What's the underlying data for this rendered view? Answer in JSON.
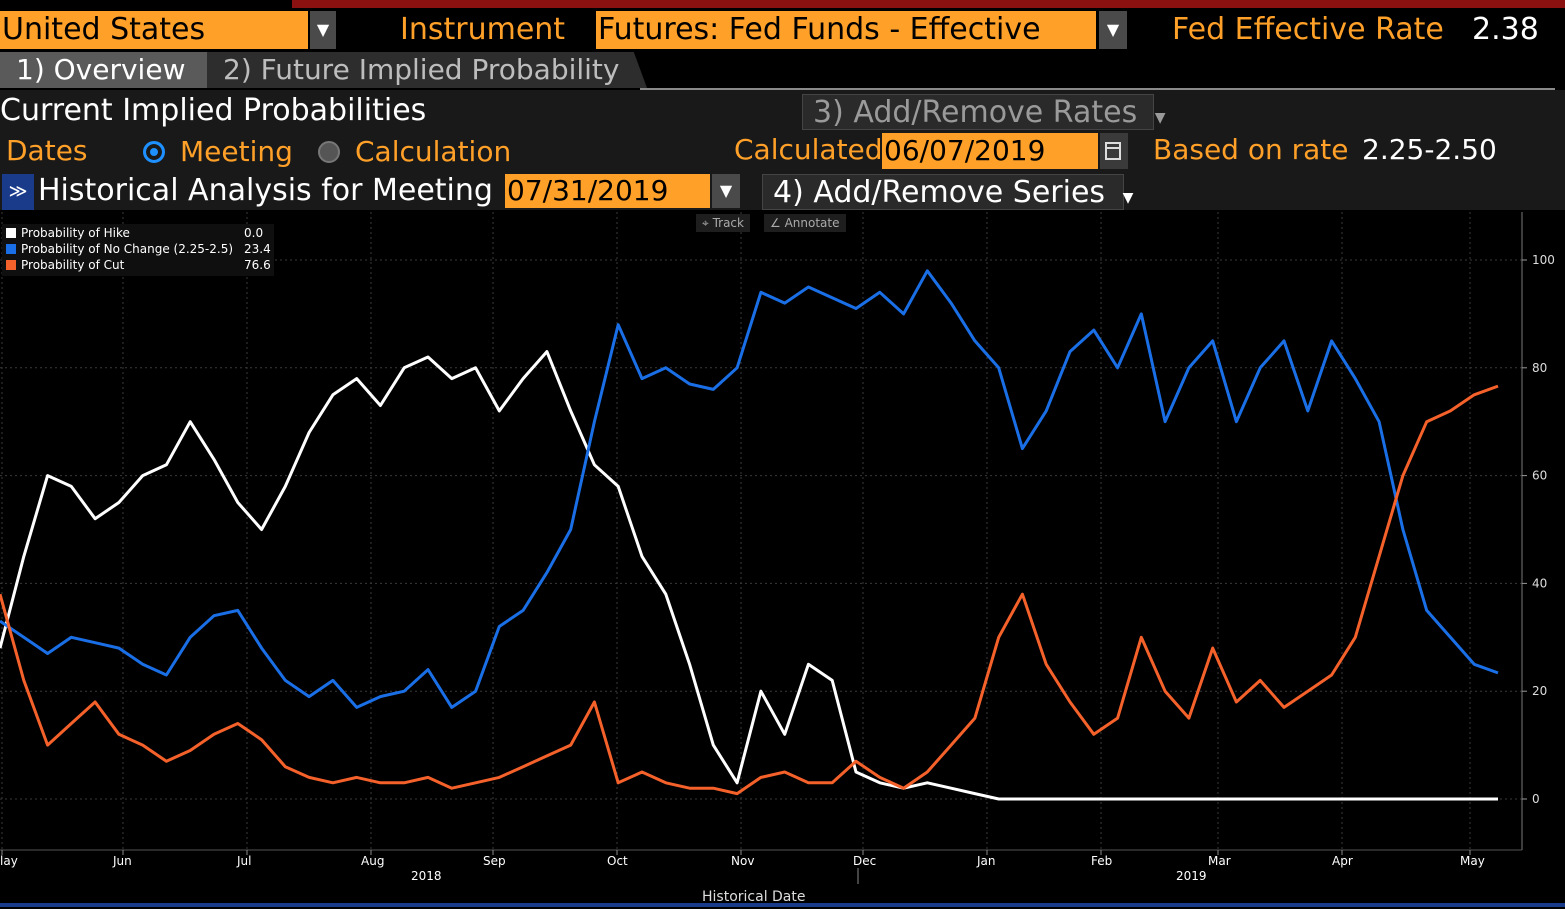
{
  "header": {
    "country": "United States",
    "instrument_label": "Instrument",
    "instrument_value": "Futures: Fed Funds - Effective",
    "rate_label": "Fed Effective Rate",
    "rate_value": "2.38"
  },
  "tabs": [
    {
      "label": "1) Overview"
    },
    {
      "label": "2) Future Implied Probability"
    }
  ],
  "section": {
    "title": "Current Implied Probabilities",
    "add_remove_rates": "3) Add/Remove Rates",
    "dates_label": "Dates",
    "radio_meeting": "Meeting",
    "radio_calculation": "Calculation",
    "calculated_label": "Calculated",
    "calculated_value": "06/07/2019",
    "based_on_label": "Based on rate",
    "based_on_value": "2.25-2.50",
    "historical_label": "Historical Analysis for Meeting",
    "meeting_value": "07/31/2019",
    "add_remove_series": "4) Add/Remove Series"
  },
  "toolbar": {
    "track": "Track",
    "annotate": "Annotate"
  },
  "colors": {
    "hike": "#ffffff",
    "no_change": "#1a6fe6",
    "cut": "#f5612a",
    "accent": "#ffa028"
  },
  "legend": [
    {
      "name": "Probability of Hike",
      "value": "0.0"
    },
    {
      "name": "Probability of No Change (2.25-2.5)",
      "value": "23.4"
    },
    {
      "name": "Probability of Cut",
      "value": "76.6"
    }
  ],
  "chart_data": {
    "type": "line",
    "xlabel": "Historical Date",
    "ylim": [
      0,
      100
    ],
    "y_ticks": [
      "0",
      "20",
      "40",
      "60",
      "80",
      "100"
    ],
    "x_ticks": [
      "lay",
      "Jun",
      "Jul",
      "Aug",
      "Sep",
      "Oct",
      "Nov",
      "Dec",
      "Jan",
      "Feb",
      "Mar",
      "Apr",
      "May"
    ],
    "year_labels": [
      "2018",
      "2019"
    ],
    "x_range": [
      0,
      12.6
    ],
    "series": [
      {
        "name": "Probability of Hike",
        "x": [
          0,
          0.2,
          0.4,
          0.6,
          0.8,
          1.0,
          1.2,
          1.4,
          1.6,
          1.8,
          2.0,
          2.2,
          2.4,
          2.6,
          2.8,
          3.0,
          3.2,
          3.4,
          3.6,
          3.8,
          4.0,
          4.2,
          4.4,
          4.6,
          4.8,
          5.0,
          5.2,
          5.4,
          5.6,
          5.8,
          6.0,
          6.2,
          6.4,
          6.6,
          6.8,
          7.0,
          7.2,
          7.4,
          7.6,
          7.8,
          8.0,
          8.2,
          8.4,
          8.6,
          8.8,
          9.0,
          9.2,
          9.4,
          9.6,
          10.0,
          10.5,
          11.0,
          11.5,
          12.0,
          12.6
        ],
        "values": [
          28,
          45,
          60,
          58,
          52,
          55,
          60,
          62,
          70,
          63,
          55,
          50,
          58,
          68,
          75,
          78,
          73,
          80,
          82,
          78,
          80,
          72,
          78,
          83,
          72,
          62,
          58,
          45,
          38,
          25,
          10,
          3,
          20,
          12,
          25,
          22,
          5,
          3,
          2,
          3,
          2,
          1,
          0,
          0,
          0,
          0,
          0,
          0,
          0,
          0,
          0,
          0,
          0,
          0,
          0
        ]
      },
      {
        "name": "Probability of No Change (2.25-2.5)",
        "x": [
          0,
          0.2,
          0.4,
          0.6,
          0.8,
          1.0,
          1.2,
          1.4,
          1.6,
          1.8,
          2.0,
          2.2,
          2.4,
          2.6,
          2.8,
          3.0,
          3.2,
          3.4,
          3.6,
          3.8,
          4.0,
          4.2,
          4.4,
          4.6,
          4.8,
          5.0,
          5.2,
          5.4,
          5.6,
          5.8,
          6.0,
          6.2,
          6.4,
          6.6,
          6.8,
          7.0,
          7.2,
          7.4,
          7.6,
          7.8,
          8.0,
          8.2,
          8.4,
          8.6,
          8.8,
          9.0,
          9.2,
          9.4,
          9.6,
          9.8,
          10.0,
          10.2,
          10.4,
          10.6,
          10.8,
          11.0,
          11.2,
          11.4,
          11.6,
          11.8,
          12.0,
          12.2,
          12.4,
          12.6
        ],
        "values": [
          33,
          30,
          27,
          30,
          29,
          28,
          25,
          23,
          30,
          34,
          35,
          28,
          22,
          19,
          22,
          17,
          19,
          20,
          24,
          17,
          20,
          32,
          35,
          42,
          50,
          70,
          88,
          78,
          80,
          77,
          76,
          80,
          94,
          92,
          95,
          93,
          91,
          94,
          90,
          98,
          92,
          85,
          80,
          65,
          72,
          83,
          87,
          80,
          90,
          70,
          80,
          85,
          70,
          80,
          85,
          72,
          85,
          78,
          70,
          50,
          35,
          30,
          25,
          23.4
        ]
      },
      {
        "name": "Probability of Cut",
        "x": [
          0,
          0.2,
          0.4,
          0.6,
          0.8,
          1.0,
          1.2,
          1.4,
          1.6,
          1.8,
          2.0,
          2.2,
          2.4,
          2.6,
          2.8,
          3.0,
          3.2,
          3.4,
          3.6,
          3.8,
          4.0,
          4.2,
          4.4,
          4.6,
          4.8,
          5.0,
          5.2,
          5.4,
          5.6,
          5.8,
          6.0,
          6.2,
          6.4,
          6.6,
          6.8,
          7.0,
          7.2,
          7.4,
          7.6,
          7.8,
          8.0,
          8.2,
          8.4,
          8.6,
          8.8,
          9.0,
          9.2,
          9.4,
          9.6,
          9.8,
          10.0,
          10.2,
          10.4,
          10.6,
          10.8,
          11.0,
          11.2,
          11.4,
          11.6,
          11.8,
          12.0,
          12.2,
          12.4,
          12.6
        ],
        "values": [
          38,
          22,
          10,
          14,
          18,
          12,
          10,
          7,
          9,
          12,
          14,
          11,
          6,
          4,
          3,
          4,
          3,
          3,
          4,
          2,
          3,
          4,
          6,
          8,
          10,
          18,
          3,
          5,
          3,
          2,
          2,
          1,
          4,
          5,
          3,
          3,
          7,
          4,
          2,
          5,
          10,
          15,
          30,
          38,
          25,
          18,
          12,
          15,
          30,
          20,
          15,
          28,
          18,
          22,
          17,
          20,
          23,
          30,
          45,
          60,
          70,
          72,
          75,
          76.6
        ]
      }
    ]
  }
}
